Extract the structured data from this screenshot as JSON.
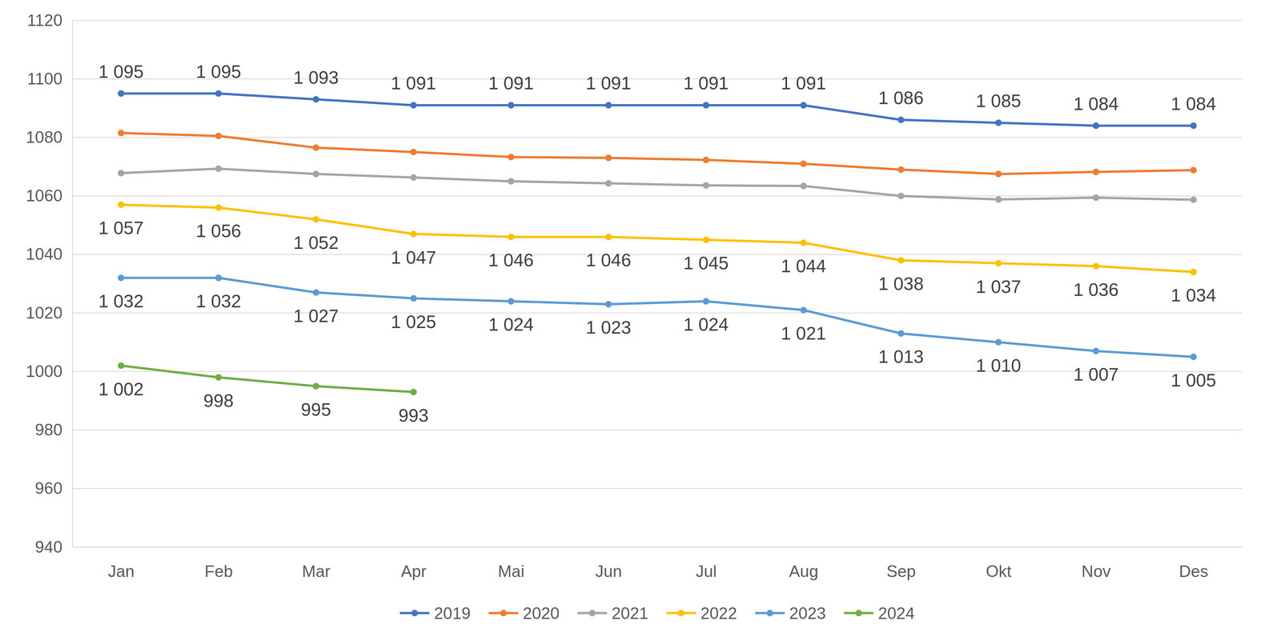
{
  "chart_data": {
    "type": "line",
    "categories": [
      "Jan",
      "Feb",
      "Mar",
      "Apr",
      "Mai",
      "Jun",
      "Jul",
      "Aug",
      "Sep",
      "Okt",
      "Nov",
      "Des"
    ],
    "ylim": [
      940,
      1120
    ],
    "yticks": [
      940,
      960,
      980,
      1000,
      1020,
      1040,
      1060,
      1080,
      1100,
      1120
    ],
    "grid": true,
    "legend": "bottom",
    "marker": "circle",
    "series": [
      {
        "name": "2019",
        "color": "#4472c4",
        "data_labels": true,
        "values": [
          1095,
          1095,
          1093,
          1091,
          1091,
          1091,
          1091,
          1091,
          1086,
          1085,
          1084,
          1084
        ],
        "value_labels": [
          "1 095",
          "1 095",
          "1 093",
          "1 091",
          "1 091",
          "1 091",
          "1 091",
          "1 091",
          "1 086",
          "1 085",
          "1 084",
          "1 084"
        ]
      },
      {
        "name": "2020",
        "color": "#ed7d31",
        "values": [
          1081.5,
          1080.5,
          1076.5,
          1075,
          1073.3,
          1073,
          1072.3,
          1071,
          1069,
          1067.5,
          1068.2,
          1068.8
        ]
      },
      {
        "name": "2021",
        "color": "#a5a5a5",
        "values": [
          1067.8,
          1069.3,
          1067.5,
          1066.3,
          1065,
          1064.3,
          1063.6,
          1063.4,
          1060,
          1058.8,
          1059.4,
          1058.7
        ]
      },
      {
        "name": "2022",
        "color": "#ffc000",
        "data_labels": true,
        "values": [
          1057,
          1056,
          1052,
          1047,
          1046,
          1046,
          1045,
          1044,
          1038,
          1037,
          1036,
          1034
        ],
        "value_labels": [
          "1 057",
          "1 056",
          "1 052",
          "1 047",
          "1 046",
          "1 046",
          "1 045",
          "1 044",
          "1 038",
          "1 037",
          "1 036",
          "1 034"
        ]
      },
      {
        "name": "2023",
        "color": "#5b9bd5",
        "data_labels": true,
        "values": [
          1032,
          1032,
          1027,
          1025,
          1024,
          1023,
          1024,
          1021,
          1013,
          1010,
          1007,
          1005
        ],
        "value_labels": [
          "1 032",
          "1 032",
          "1 027",
          "1 025",
          "1 024",
          "1 023",
          "1 024",
          "1 021",
          "1 013",
          "1 010",
          "1 007",
          "1 005"
        ]
      },
      {
        "name": "2024",
        "color": "#70ad47",
        "data_labels": true,
        "values": [
          1002,
          998,
          995,
          993,
          null,
          null,
          null,
          null,
          null,
          null,
          null,
          null
        ],
        "value_labels": [
          "1 002",
          "998",
          "995",
          "993",
          null,
          null,
          null,
          null,
          null,
          null,
          null,
          null
        ]
      }
    ]
  }
}
